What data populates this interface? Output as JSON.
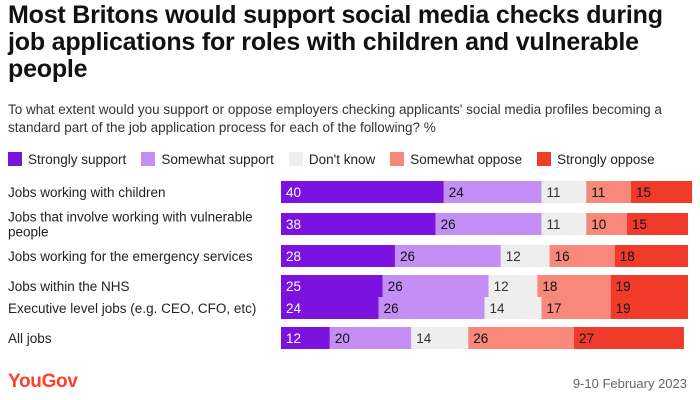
{
  "title": "Most Britons would support social media checks during job applications for roles with children and vulnerable people",
  "subtitle": "To what extent would you support or oppose employers checking applicants' social media profiles becoming a standard part of the job application process for each of the following? %",
  "footer": {
    "brand": "YouGov",
    "date": "9-10 February 2023"
  },
  "chart_data": {
    "type": "bar",
    "orientation": "horizontal",
    "stacked": true,
    "categories": [
      "Jobs working with children",
      "Jobs that involve working with vulnerable people",
      "Jobs working for the emergency services",
      "Jobs within the NHS",
      "Executive level jobs (e.g. CEO, CFO, etc)",
      "All jobs"
    ],
    "category_lines": [
      [
        "Jobs working with children"
      ],
      [
        "Jobs that involve working with vulnerable",
        "people"
      ],
      [
        "Jobs working for the emergency services"
      ],
      [
        "Jobs within the NHS"
      ],
      [
        "Executive level jobs (e.g. CEO, CFO, etc)"
      ],
      [
        "All jobs"
      ]
    ],
    "series": [
      {
        "name": "Strongly support",
        "color": "#7b12e0",
        "text_color": "#ffffff",
        "values": [
          40,
          38,
          28,
          25,
          24,
          12
        ]
      },
      {
        "name": "Somewhat support",
        "color": "#c48ef5",
        "text_color": "#111111",
        "values": [
          24,
          26,
          26,
          26,
          26,
          20
        ]
      },
      {
        "name": "Don't know",
        "color": "#eeeeee",
        "text_color": "#333333",
        "values": [
          11,
          11,
          12,
          12,
          14,
          14
        ]
      },
      {
        "name": "Somewhat oppose",
        "color": "#f7887a",
        "text_color": "#111111",
        "values": [
          11,
          10,
          16,
          18,
          17,
          26
        ]
      },
      {
        "name": "Strongly oppose",
        "color": "#f03a2a",
        "text_color": "#111111",
        "values": [
          15,
          15,
          18,
          19,
          19,
          27
        ]
      }
    ],
    "xlim": [
      0,
      100
    ],
    "legend_position": "top",
    "grid": false
  }
}
